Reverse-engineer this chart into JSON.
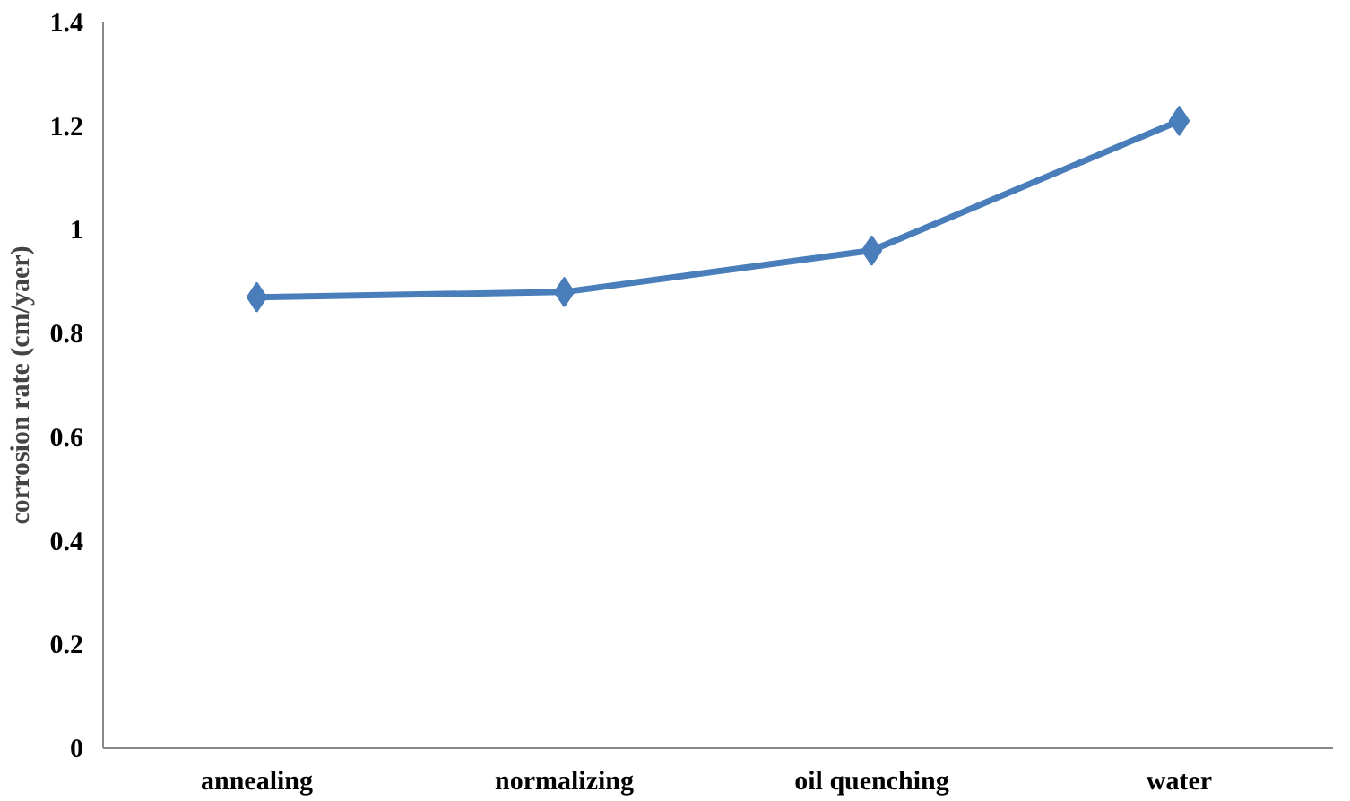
{
  "chart_data": {
    "type": "line",
    "ylabel": "corrosion rate (cm/yaer)",
    "categories": [
      "annealing",
      "normalizing",
      "oil quenching",
      "water"
    ],
    "series": [
      {
        "color": "#4a7ebb",
        "values": [
          0.87,
          0.88,
          0.96,
          1.21
        ]
      }
    ],
    "ylim": [
      0,
      1.4
    ],
    "yticks": [
      0,
      0.2,
      0.4,
      0.6,
      0.8,
      1,
      1.2,
      1.4
    ],
    "grid": false,
    "marker": "diamond",
    "line_style": "solid"
  }
}
